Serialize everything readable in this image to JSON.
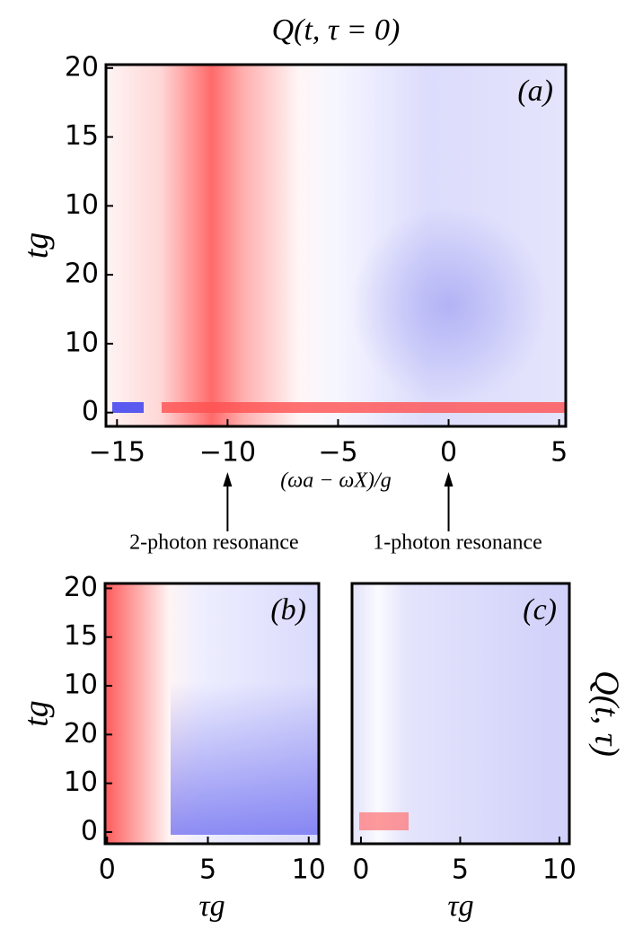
{
  "chart_data": [
    {
      "type": "heatmap",
      "title": "Q(t, τ = 0)",
      "panel_label": "(a)",
      "xlabel": "(ωa − ωX)/g",
      "ylabel": "tg",
      "xlim": [
        -15.5,
        5.3
      ],
      "ylim": [
        -2,
        50.5
      ],
      "xticks": [
        {
          "value": -15,
          "label": "−15"
        },
        {
          "value": -10,
          "label": "−10"
        },
        {
          "value": -5,
          "label": "−5"
        },
        0,
        5
      ],
      "yticks": [
        0,
        10,
        20,
        {
          "value": 30,
          "label": "10"
        },
        {
          "value": 40,
          "label": "15"
        },
        {
          "value": 50,
          "label": "20"
        }
      ],
      "annotations": [
        {
          "x": -10,
          "text": "2-photon resonance"
        },
        {
          "x": 0,
          "text": "1-photon resonance"
        }
      ]
    },
    {
      "type": "heatmap",
      "panel_label": "(b)",
      "xlabel": "τg",
      "ylabel": "tg",
      "xlim": [
        -0.1,
        10.5
      ],
      "ylim": [
        -2.4,
        51
      ],
      "xticks": [
        0,
        5,
        10
      ],
      "yticks": [
        0,
        10,
        20,
        {
          "value": 30,
          "label": "10"
        },
        {
          "value": 40,
          "label": "15"
        },
        {
          "value": 50,
          "label": "20"
        }
      ]
    },
    {
      "type": "heatmap",
      "panel_label": "(c)",
      "xlabel": "τg",
      "colorbar_label": "Q(t, τ)",
      "xlim": [
        -0.45,
        10.5
      ],
      "ylim": [
        -2.4,
        51
      ],
      "xticks": [
        0,
        5,
        10
      ]
    }
  ]
}
